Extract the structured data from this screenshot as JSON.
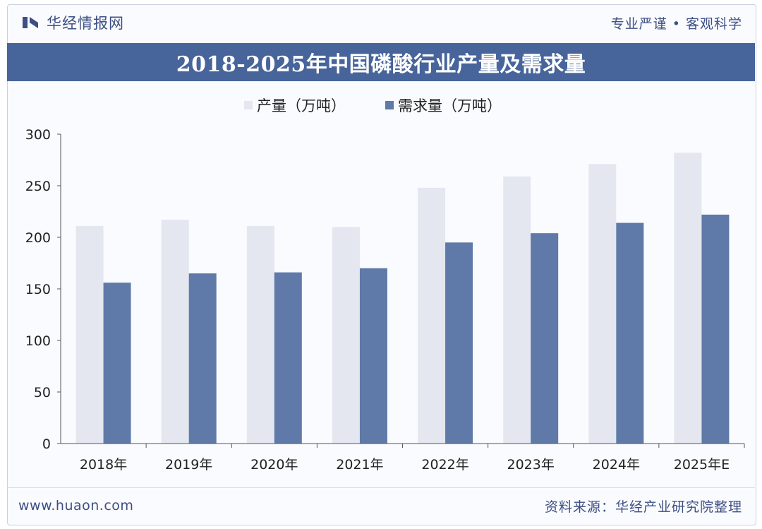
{
  "header": {
    "brand": "华经情报网",
    "tagline": "专业严谨 • 客观科学"
  },
  "colors": {
    "brand": "#47649b",
    "production": "#e4e7ef",
    "demand": "#5f79a8",
    "text": "#3d4f84"
  },
  "footer": {
    "site": "www.huaon.com",
    "source": "资料来源：华经产业研究院整理"
  },
  "chart_data": {
    "type": "bar",
    "title": "2018-2025年中国磷酸行业产量及需求量",
    "categories": [
      "2018年",
      "2019年",
      "2020年",
      "2021年",
      "2022年",
      "2023年",
      "2024年",
      "2025年E"
    ],
    "series": [
      {
        "name": "产量（万吨）",
        "values": [
          211,
          217,
          211,
          210,
          248,
          259,
          271,
          282
        ]
      },
      {
        "name": "需求量（万吨）",
        "values": [
          156,
          165,
          166,
          170,
          195,
          204,
          214,
          222
        ]
      }
    ],
    "ylim": [
      0,
      300
    ],
    "yticks": [
      0,
      50,
      100,
      150,
      200,
      250,
      300
    ],
    "grid": false,
    "legend": "top"
  }
}
